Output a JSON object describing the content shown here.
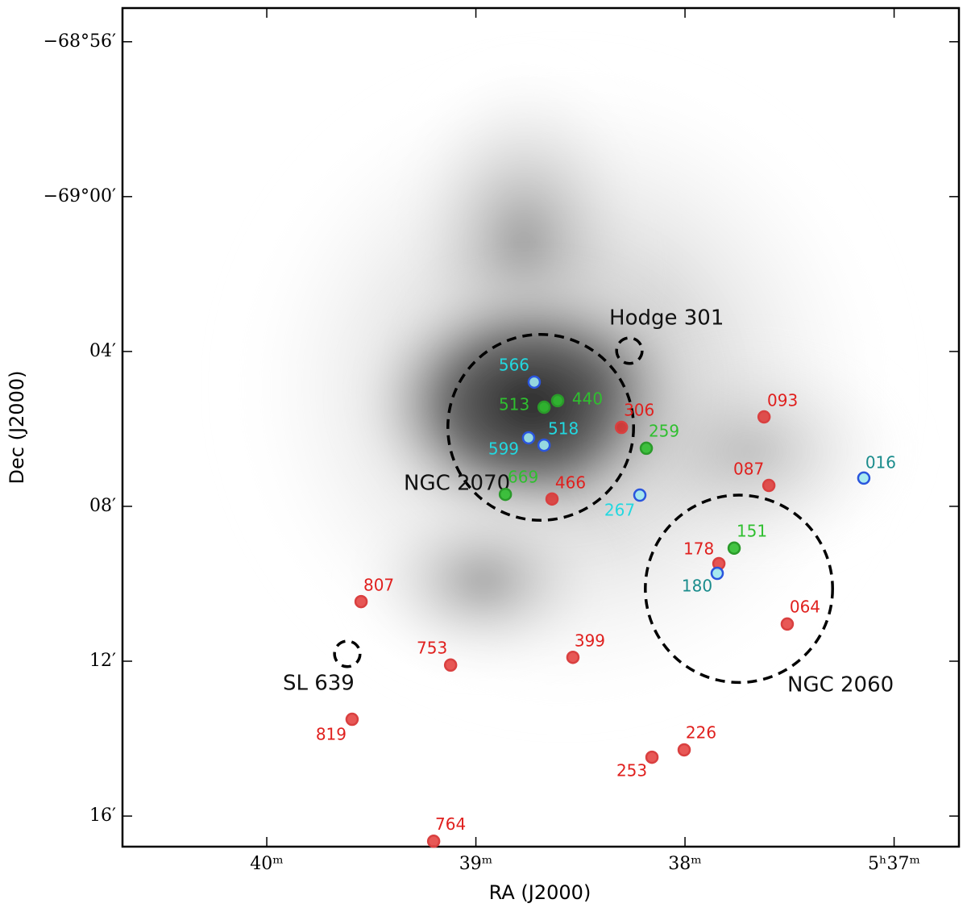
{
  "chart_data": {
    "type": "scatter",
    "x_label": "RA (J2000)",
    "y_label": "Dec (J2000)",
    "xlim": [
      40.69,
      36.69
    ],
    "ylim": [
      -4156.79,
      -4135.13
    ],
    "xticks": [
      {
        "value": 40,
        "label": "40ᵐ"
      },
      {
        "value": 39,
        "label": "39ᵐ"
      },
      {
        "value": 38,
        "label": "38ᵐ"
      },
      {
        "value": 37,
        "label": "5ʰ37ᵐ"
      }
    ],
    "yticks": [
      {
        "value": -4136,
        "label": "−68°56′"
      },
      {
        "value": -4140,
        "label": "−69°00′"
      },
      {
        "value": -4144,
        "label": "04′"
      },
      {
        "value": -4148,
        "label": "08′"
      },
      {
        "value": -4152,
        "label": "12′"
      },
      {
        "value": -4156,
        "label": "16′"
      }
    ],
    "series": [
      {
        "color": "#e0201e",
        "labels": [
          "306",
          "093",
          "087",
          "466",
          "178",
          "064",
          "807",
          "753",
          "399",
          "819",
          "226",
          "253",
          "764"
        ],
        "x": [
          38.304,
          37.622,
          37.599,
          38.636,
          37.838,
          37.511,
          39.549,
          39.121,
          38.536,
          39.592,
          38.004,
          38.158,
          39.202
        ],
        "values": [
          -4145.96,
          -4145.69,
          -4147.46,
          -4147.81,
          -4149.48,
          -4151.04,
          -4150.46,
          -4152.1,
          -4151.9,
          -4153.5,
          -4154.29,
          -4154.48,
          -4156.65
        ]
      },
      {
        "color": "#2fbf2f",
        "labels": [
          "513",
          "440",
          "259",
          "669",
          "151"
        ],
        "x": [
          38.674,
          38.609,
          38.185,
          38.859,
          37.765
        ],
        "values": [
          -4145.44,
          -4145.27,
          -4146.5,
          -4147.69,
          -4149.08
        ]
      },
      {
        "color": "#22d8e0",
        "labels": [
          "566",
          "518",
          "599",
          "267"
        ],
        "x": [
          38.721,
          38.674,
          38.748,
          38.216
        ],
        "values": [
          -4144.79,
          -4146.42,
          -4146.23,
          -4147.71
        ]
      },
      {
        "color": "#1a8c8c",
        "labels": [
          "016",
          "180"
        ],
        "x": [
          37.145,
          37.846
        ],
        "values": [
          -4147.27,
          -4149.73
        ]
      }
    ],
    "regions": [
      {
        "label": "NGC 2070",
        "x": 38.69,
        "y": -4145.96,
        "radius": 2.4
      },
      {
        "label": "NGC 2060",
        "x": 37.742,
        "y": -4150.13,
        "radius": 2.42
      },
      {
        "label": "Hodge 301",
        "x": 38.266,
        "y": -4143.98,
        "radius": 0.33
      },
      {
        "label": "SL 639",
        "x": 39.615,
        "y": -4151.81,
        "radius": 0.33
      }
    ]
  }
}
